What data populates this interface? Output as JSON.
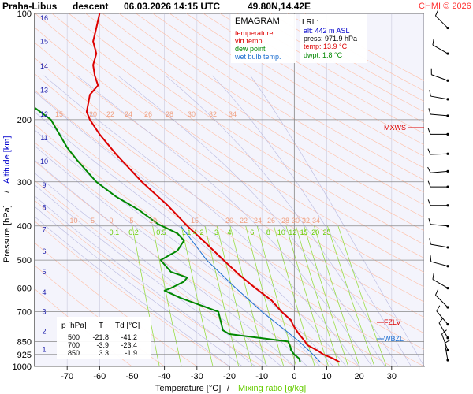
{
  "header": {
    "station": "Praha-Libus",
    "mode": "descent",
    "datetime": "06.03.2026 14:15 UTC",
    "coords": "49.80N,14.42E",
    "copyright": "CHMI © 2026"
  },
  "legend": {
    "title": "EMAGRAM",
    "items": [
      {
        "label": "temperature",
        "color": "#dd0000"
      },
      {
        "label": "virt.temp.",
        "color": "#dd0000"
      },
      {
        "label": "dew point",
        "color": "#008800"
      },
      {
        "label": "wet bulb temp.",
        "color": "#1e6fd0"
      }
    ]
  },
  "lrl": {
    "title": "LRL:",
    "alt": "alt: 442 m ASL",
    "press": "press: 971.9 hPa",
    "temp": "temp: 13.9 °C",
    "dwpt": "dwpt: 1.8 °C",
    "alt_color": "#0000cc",
    "temp_color": "#dd0000",
    "dwpt_color": "#008800"
  },
  "table": {
    "headers": [
      "p [hPa]",
      "T",
      "Td [°C]"
    ],
    "rows": [
      [
        "500",
        "-21.8",
        "-41.2"
      ],
      [
        "700",
        "-3.9",
        "-23.4"
      ],
      [
        "850",
        "3.3",
        "-1.9"
      ]
    ]
  },
  "markers": {
    "mxws": "MXWS",
    "fzlv": "FZLV",
    "wbzl": "WBZL"
  },
  "chart_data": {
    "type": "line",
    "title": "Praha-Libus descent 06.03.2026 14:15 UTC 49.80N,14.42E",
    "xlabel": "Temperature [°C]",
    "xlabel2": "Mixing ratio [g/kg]",
    "ylabel": "Pressure [hPa]",
    "ylabel2": "Altitude [km]",
    "xlim": [
      -80,
      40
    ],
    "ylim": [
      1000,
      100
    ],
    "y_scale": "log",
    "x_ticks": [
      -70,
      -60,
      -50,
      -40,
      -30,
      -20,
      -10,
      0,
      10,
      20,
      30
    ],
    "pressure_ticks": [
      100,
      200,
      300,
      400,
      500,
      600,
      700,
      850,
      925,
      1000
    ],
    "altitude_ticks": [
      {
        "km": 1,
        "p": 895
      },
      {
        "km": 2,
        "p": 795
      },
      {
        "km": 3,
        "p": 700
      },
      {
        "km": 4,
        "p": 617
      },
      {
        "km": 5,
        "p": 540
      },
      {
        "km": 6,
        "p": 472
      },
      {
        "km": 7,
        "p": 410
      },
      {
        "km": 8,
        "p": 355
      },
      {
        "km": 9,
        "p": 307
      },
      {
        "km": 10,
        "p": 263
      },
      {
        "km": 11,
        "p": 225
      },
      {
        "km": 12,
        "p": 193
      },
      {
        "km": 13,
        "p": 165
      },
      {
        "km": 14,
        "p": 141
      },
      {
        "km": 15,
        "p": 120
      },
      {
        "km": 16,
        "p": 103
      }
    ],
    "mixing_ratio_labels": [
      "0.1",
      "0.2",
      "0.5",
      "1",
      "1.4",
      "2",
      "3",
      "4",
      "6",
      "8",
      "10",
      "12",
      "15",
      "20",
      "25"
    ],
    "mixing_ratio_label_positions": [
      {
        "label": "0.1",
        "T": -55.5
      },
      {
        "label": "0.2",
        "T": -49.5
      },
      {
        "label": "0.5",
        "T": -41
      },
      {
        "label": "1",
        "T": -34
      },
      {
        "label": "1.4",
        "T": -31.5
      },
      {
        "label": "2",
        "T": -28.5
      },
      {
        "label": "3",
        "T": -24
      },
      {
        "label": "4",
        "T": -20
      },
      {
        "label": "6",
        "T": -13
      },
      {
        "label": "8",
        "T": -8
      },
      {
        "label": "10",
        "T": -4
      },
      {
        "label": "12",
        "T": -0.5
      },
      {
        "label": "15",
        "T": 3
      },
      {
        "label": "20",
        "T": 6.5
      },
      {
        "label": "25",
        "T": 10
      }
    ],
    "isotherm_label_row_400": [
      "-10",
      "-5",
      "0",
      "5",
      "10",
      "15",
      "20",
      "22",
      "24",
      "26",
      "28",
      "30",
      "32",
      "34"
    ],
    "isotherm_label_row_200": [
      "15",
      "20",
      "22",
      "24",
      "26",
      "28",
      "30",
      "32",
      "34"
    ],
    "series": [
      {
        "name": "temperature",
        "color": "#dd0000",
        "points": [
          [
            13.9,
            971.9
          ],
          [
            12.0,
            950
          ],
          [
            9.0,
            925
          ],
          [
            7.0,
            900
          ],
          [
            4.0,
            870
          ],
          [
            3.3,
            850
          ],
          [
            1.0,
            800
          ],
          [
            -0.5,
            760
          ],
          [
            -1.0,
            740
          ],
          [
            -3.9,
            700
          ],
          [
            -7.0,
            650
          ],
          [
            -12.0,
            600
          ],
          [
            -17.0,
            550
          ],
          [
            -21.8,
            500
          ],
          [
            -27.0,
            450
          ],
          [
            -33.0,
            400
          ],
          [
            -39.0,
            350
          ],
          [
            -47.0,
            300
          ],
          [
            -55.0,
            250
          ],
          [
            -60.0,
            220
          ],
          [
            -63.0,
            200
          ],
          [
            -64.0,
            190
          ],
          [
            -63.0,
            170
          ],
          [
            -60.5,
            160
          ],
          [
            -61.5,
            150
          ],
          [
            -62.0,
            140
          ],
          [
            -61.0,
            130
          ],
          [
            -62.0,
            120
          ],
          [
            -61.0,
            110
          ],
          [
            -60.0,
            100
          ]
        ]
      },
      {
        "name": "dew point",
        "color": "#008800",
        "points": [
          [
            1.8,
            971.9
          ],
          [
            1.5,
            950
          ],
          [
            0.0,
            925
          ],
          [
            -1.0,
            900
          ],
          [
            -1.2,
            880
          ],
          [
            -1.9,
            850
          ],
          [
            -20.0,
            810
          ],
          [
            -22.0,
            790
          ],
          [
            -23.4,
            700
          ],
          [
            -35.0,
            640
          ],
          [
            -40.0,
            610
          ],
          [
            -38.0,
            600
          ],
          [
            -34.0,
            575
          ],
          [
            -33.0,
            560
          ],
          [
            -38.0,
            540
          ],
          [
            -41.2,
            500
          ],
          [
            -36.0,
            470
          ],
          [
            -34.0,
            440
          ],
          [
            -36.0,
            420
          ],
          [
            -42.0,
            395
          ],
          [
            -48.0,
            360
          ],
          [
            -55.0,
            330
          ],
          [
            -61.0,
            300
          ],
          [
            -67.0,
            260
          ],
          [
            -70.0,
            240
          ],
          [
            -75.0,
            200
          ],
          [
            -80.0,
            185
          ]
        ]
      },
      {
        "name": "wet bulb temp.",
        "color": "#1e6fd0",
        "points": [
          [
            8.0,
            971.9
          ],
          [
            6.5,
            940
          ],
          [
            5.0,
            910
          ],
          [
            1.5,
            850
          ],
          [
            -2.0,
            800
          ],
          [
            -10.0,
            700
          ],
          [
            -18.0,
            600
          ],
          [
            -27.0,
            500
          ],
          [
            -35.0,
            400
          ]
        ]
      }
    ]
  },
  "wind_barbs": [
    {
      "p": 110,
      "dir": 315
    },
    {
      "p": 130,
      "dir": 300
    },
    {
      "p": 155,
      "dir": 290
    },
    {
      "p": 175,
      "dir": 280
    },
    {
      "p": 195,
      "dir": 275
    },
    {
      "p": 220,
      "dir": 270
    },
    {
      "p": 250,
      "dir": 268
    },
    {
      "p": 280,
      "dir": 265
    },
    {
      "p": 310,
      "dir": 270
    },
    {
      "p": 350,
      "dir": 270
    },
    {
      "p": 400,
      "dir": 275
    },
    {
      "p": 460,
      "dir": 280
    },
    {
      "p": 520,
      "dir": 285
    },
    {
      "p": 600,
      "dir": 300
    },
    {
      "p": 680,
      "dir": 315
    },
    {
      "p": 760,
      "dir": 320
    },
    {
      "p": 830,
      "dir": 330
    },
    {
      "p": 900,
      "dir": 340
    },
    {
      "p": 960,
      "dir": 350
    }
  ]
}
